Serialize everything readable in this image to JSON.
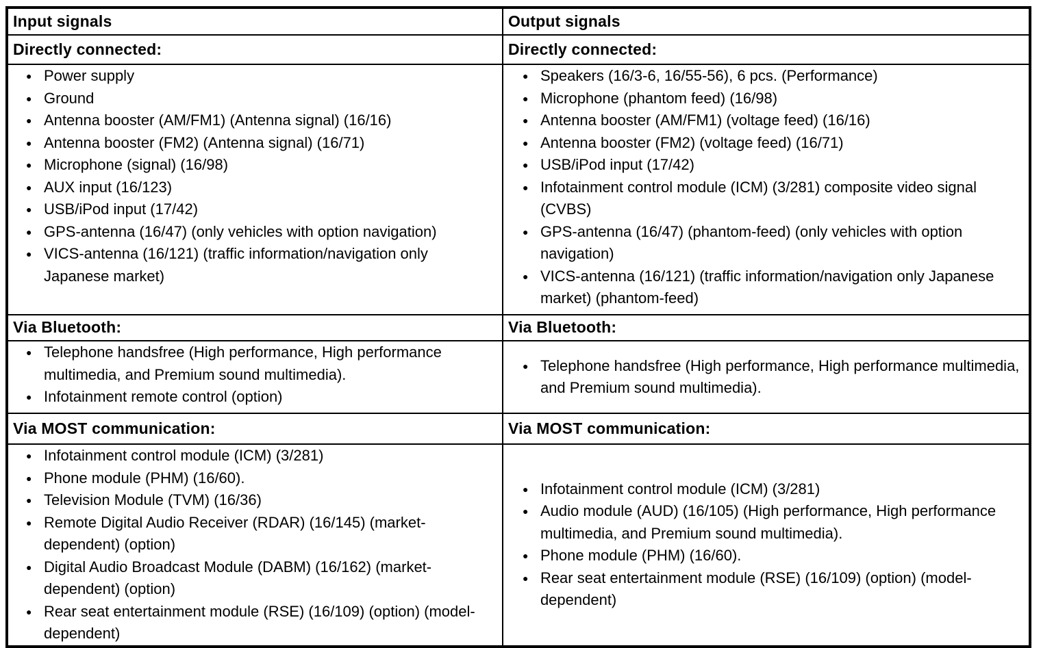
{
  "colors": {
    "background": "#ffffff",
    "text": "#000000",
    "border": "#000000"
  },
  "icons": {
    "bullet": "●"
  },
  "table": {
    "columns": [
      {
        "header": "Input signals",
        "sections": [
          {
            "title": "Directly connected:",
            "items": [
              "Power supply",
              "Ground",
              "Antenna booster (AM/FM1) (Antenna signal) (16/16)",
              "Antenna booster (FM2) (Antenna signal) (16/71)",
              "Microphone (signal) (16/98)",
              "AUX input (16/123)",
              "USB/iPod input (17/42)",
              "GPS-antenna (16/47) (only vehicles with option navigation)",
              "VICS-antenna (16/121) (traffic information/navigation only Japanese market)"
            ]
          },
          {
            "title": "Via Bluetooth:",
            "items": [
              "Telephone handsfree (High performance, High performance multimedia, and Premium sound multimedia).",
              "Infotainment remote control (option)"
            ]
          },
          {
            "title": "Via MOST communication:",
            "items": [
              "Infotainment control module (ICM) (3/281)",
              "Phone module (PHM) (16/60).",
              "Television Module (TVM) (16/36)",
              "Remote Digital Audio Receiver (RDAR) (16/145) (market-dependent) (option)",
              "Digital Audio Broadcast Module (DABM) (16/162) (market-dependent) (option)",
              "Rear seat entertainment module (RSE) (16/109) (option) (model-dependent)"
            ]
          }
        ]
      },
      {
        "header": "Output signals",
        "sections": [
          {
            "title": "Directly connected:",
            "items": [
              "Speakers (16/3-6, 16/55-56), 6 pcs. (Performance)",
              "Microphone (phantom feed) (16/98)",
              "Antenna booster (AM/FM1) (voltage feed) (16/16)",
              "Antenna booster (FM2) (voltage feed) (16/71)",
              "USB/iPod input (17/42)",
              "Infotainment control module (ICM) (3/281) composite video signal (CVBS)",
              "GPS-antenna (16/47) (phantom-feed) (only vehicles with option navigation)",
              "VICS-antenna (16/121) (traffic information/navigation only Japanese market) (phantom-feed)"
            ]
          },
          {
            "title": "Via Bluetooth:",
            "items": [
              "Telephone handsfree (High performance, High performance multimedia, and Premium sound multimedia)."
            ]
          },
          {
            "title": "Via MOST communication:",
            "items": [
              "Infotainment control module (ICM) (3/281)",
              "Audio module (AUD) (16/105) (High performance, High performance multimedia, and Premium sound multimedia).",
              "Phone module (PHM) (16/60).",
              "Rear seat entertainment module (RSE) (16/109) (option) (model-dependent)"
            ]
          }
        ]
      }
    ]
  }
}
